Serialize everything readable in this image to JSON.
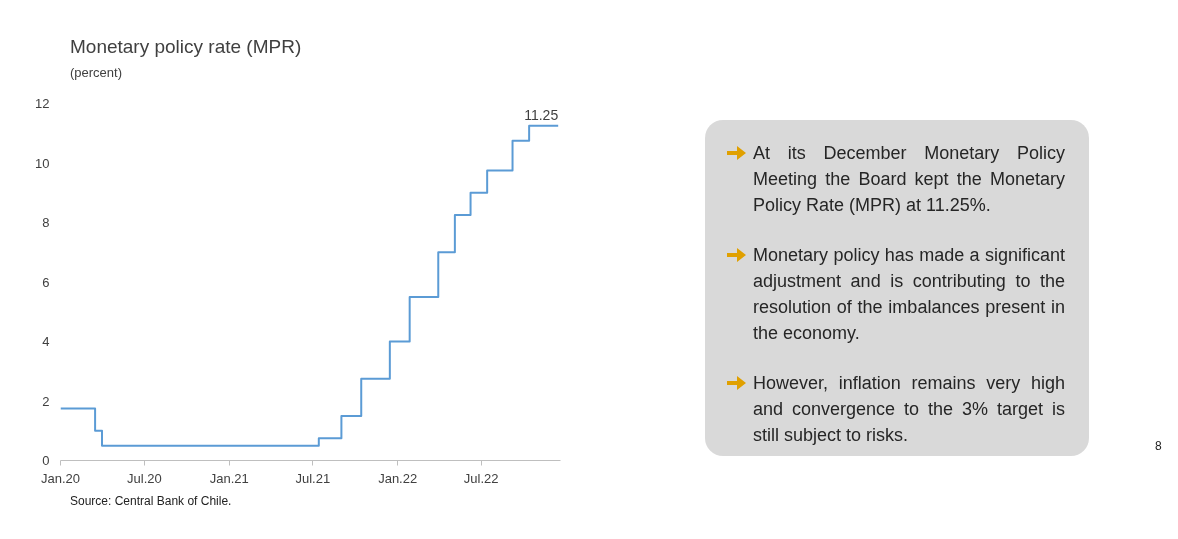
{
  "chart_data": {
    "type": "step",
    "title": "Monetary policy rate (MPR)",
    "subtitle": "(percent)",
    "x": [
      "2020-01-01",
      "2020-03-16",
      "2020-03-31",
      "2021-07-14",
      "2021-09-01",
      "2021-10-14",
      "2021-12-15",
      "2022-01-27",
      "2022-03-30",
      "2022-05-05",
      "2022-06-08",
      "2022-07-14",
      "2022-09-07",
      "2022-10-13",
      "2022-12-15"
    ],
    "series": [
      {
        "color": "#5b9bd5",
        "values": [
          1.75,
          1.0,
          0.5,
          0.75,
          1.5,
          2.75,
          4.0,
          5.5,
          7.0,
          8.25,
          9.0,
          9.75,
          10.75,
          11.25,
          11.25
        ],
        "value_labels": [
          null,
          null,
          null,
          null,
          null,
          null,
          null,
          null,
          null,
          null,
          null,
          null,
          null,
          null,
          "11.25"
        ]
      }
    ],
    "xlim": [
      "2020-01-01",
      "2022-12-20"
    ],
    "xticks": [
      {
        "value": "2020-01-01",
        "label": "Jan.20"
      },
      {
        "value": "2020-07-01",
        "label": "Jul.20"
      },
      {
        "value": "2021-01-01",
        "label": "Jan.21"
      },
      {
        "value": "2021-07-01",
        "label": "Jul.21"
      },
      {
        "value": "2022-01-01",
        "label": "Jan.22"
      },
      {
        "value": "2022-07-01",
        "label": "Jul.22"
      }
    ],
    "ylim": [
      0,
      12
    ],
    "yticks": [
      0,
      2,
      4,
      6,
      8,
      10,
      12
    ],
    "grid": false,
    "annotations": [
      "At its December Monetary Policy Meeting the Board kept the Monetary Policy Rate (MPR) at 11.25%.",
      "Monetary policy has made a significant adjustment and is contributing to the resolution of the imbalances present in the economy.",
      "However, inflation remains very high and convergence to the 3% target is still subject to risks.",
      "Source: Central Bank of Chile.",
      "8"
    ]
  }
}
